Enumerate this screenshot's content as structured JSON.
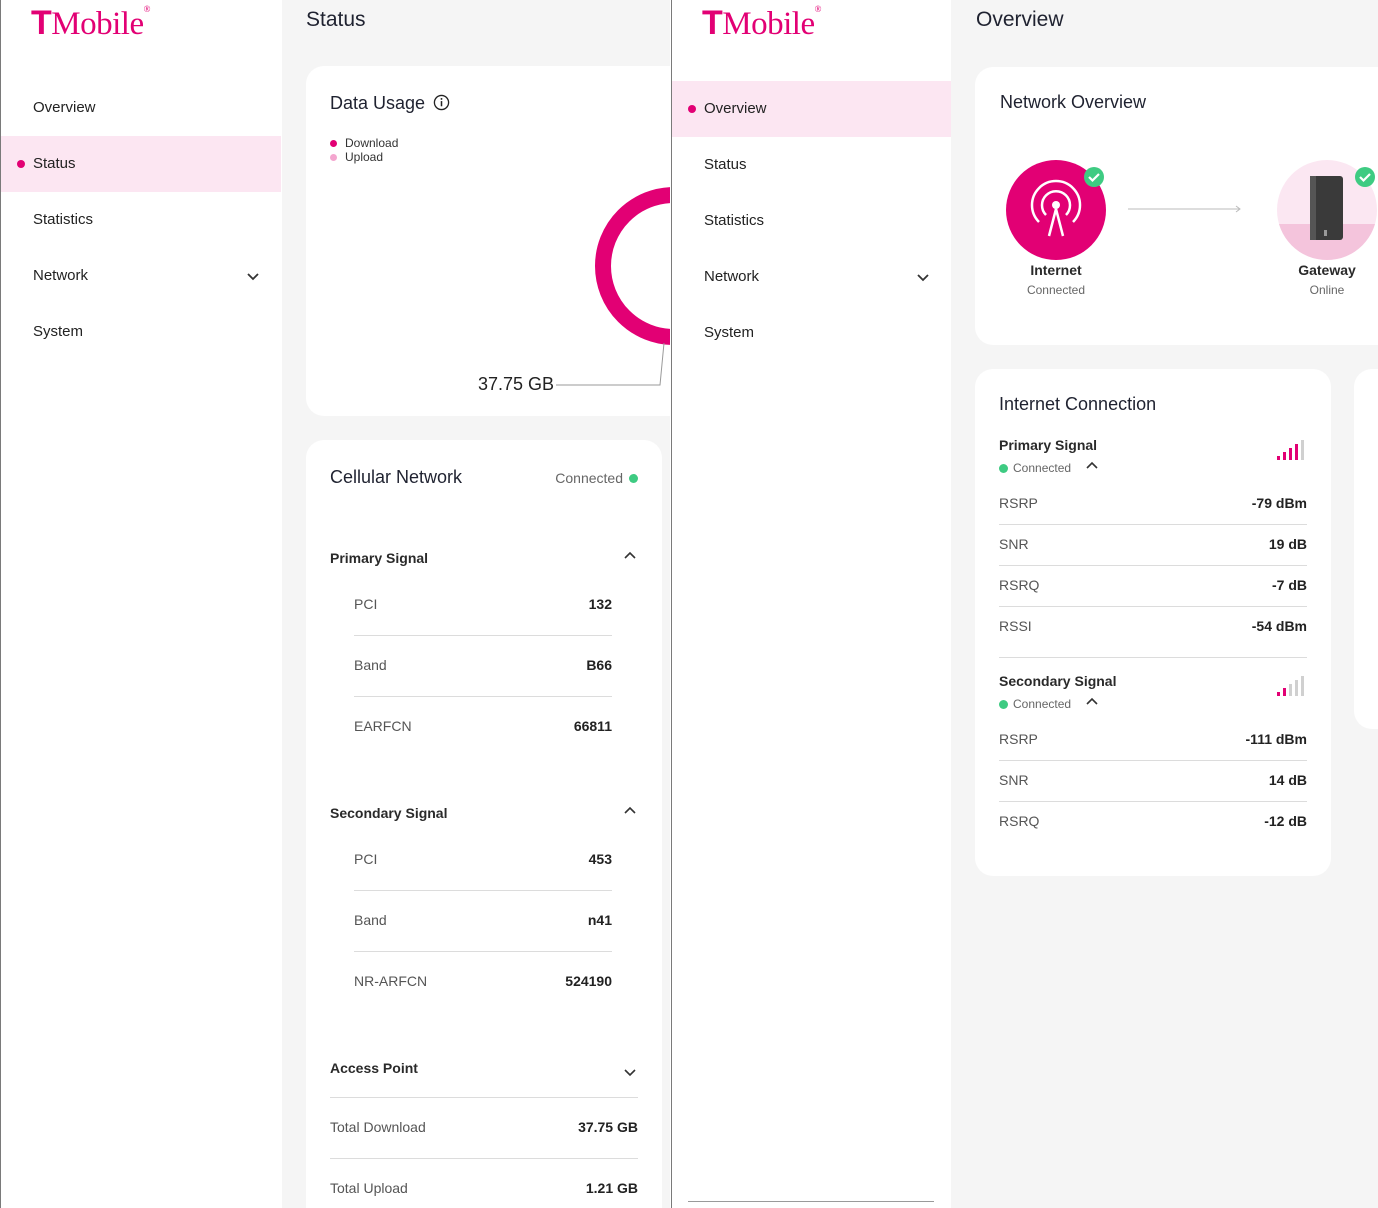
{
  "brand": {
    "logo_t": "T",
    "logo_text": "Mobile",
    "color": "#e20074"
  },
  "left": {
    "nav": [
      {
        "label": "Overview",
        "active": false
      },
      {
        "label": "Status",
        "active": true
      },
      {
        "label": "Statistics",
        "active": false
      },
      {
        "label": "Network",
        "active": false,
        "has_submenu": true
      },
      {
        "label": "System",
        "active": false
      }
    ],
    "page_title": "Status",
    "data_usage": {
      "title": "Data Usage",
      "legend": [
        {
          "label": "Download",
          "color": "#e20074"
        },
        {
          "label": "Upload",
          "color": "#f4a6cf"
        }
      ],
      "total_label": "37.75 GB"
    },
    "cellular": {
      "title": "Cellular Network",
      "status": "Connected",
      "primary": {
        "title": "Primary Signal",
        "rows": [
          {
            "label": "PCI",
            "value": "132"
          },
          {
            "label": "Band",
            "value": "B66"
          },
          {
            "label": "EARFCN",
            "value": "66811"
          }
        ]
      },
      "secondary": {
        "title": "Secondary Signal",
        "rows": [
          {
            "label": "PCI",
            "value": "453"
          },
          {
            "label": "Band",
            "value": "n41"
          },
          {
            "label": "NR-ARFCN",
            "value": "524190"
          }
        ]
      },
      "access_point": {
        "title": "Access Point",
        "rows": [
          {
            "label": "Total Download",
            "value": "37.75 GB"
          },
          {
            "label": "Total Upload",
            "value": "1.21 GB"
          }
        ]
      }
    }
  },
  "right": {
    "nav": [
      {
        "label": "Overview",
        "active": true
      },
      {
        "label": "Status",
        "active": false
      },
      {
        "label": "Statistics",
        "active": false
      },
      {
        "label": "Network",
        "active": false,
        "has_submenu": true
      },
      {
        "label": "System",
        "active": false
      }
    ],
    "page_title": "Overview",
    "network_overview": {
      "title": "Network Overview",
      "internet": {
        "label": "Internet",
        "status": "Connected"
      },
      "gateway": {
        "label": "Gateway",
        "status": "Online"
      }
    },
    "internet_connection": {
      "title": "Internet Connection",
      "primary": {
        "title": "Primary Signal",
        "status": "Connected",
        "signal_bars": 4,
        "rows": [
          {
            "label": "RSRP",
            "value": "-79 dBm"
          },
          {
            "label": "SNR",
            "value": "19 dB"
          },
          {
            "label": "RSRQ",
            "value": "-7 dB"
          },
          {
            "label": "RSSI",
            "value": "-54 dBm"
          }
        ]
      },
      "secondary": {
        "title": "Secondary Signal",
        "status": "Connected",
        "signal_bars": 2,
        "rows": [
          {
            "label": "RSRP",
            "value": "-111 dBm"
          },
          {
            "label": "SNR",
            "value": "14 dB"
          },
          {
            "label": "RSRQ",
            "value": "-12 dB"
          }
        ]
      }
    }
  }
}
